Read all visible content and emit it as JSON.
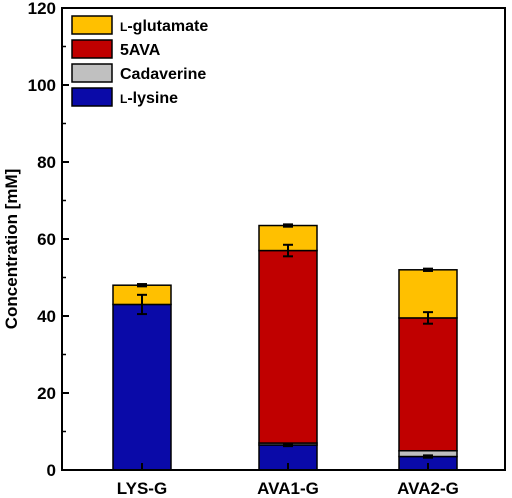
{
  "chart_data": {
    "type": "bar",
    "stacked": true,
    "categories": [
      "LYS-G",
      "AVA1-G",
      "AVA2-G"
    ],
    "ylabel": "Concentration [mM]",
    "xlabel": "",
    "ylim": [
      0,
      120
    ],
    "yticks": [
      0,
      20,
      40,
      60,
      80,
      100,
      120
    ],
    "grid": false,
    "legend_position": "top-left",
    "series": [
      {
        "name_sc": "l",
        "name_rest": "-lysine",
        "color": "#0a0aa8",
        "values": [
          43.0,
          6.5,
          3.5
        ],
        "errors": [
          2.5,
          0.3,
          0.3
        ]
      },
      {
        "name_rest": "Cadaverine",
        "color": "#c0c0c0",
        "values": [
          0.0,
          0.5,
          1.5
        ],
        "errors": [
          0,
          0,
          0
        ]
      },
      {
        "name_rest": "5AVA",
        "color": "#c00000",
        "values": [
          0.0,
          50.0,
          34.5
        ],
        "errors": [
          0,
          1.5,
          1.5
        ]
      },
      {
        "name_sc": "l",
        "name_rest": "-glutamate",
        "color": "#ffc000",
        "values": [
          5.0,
          6.5,
          12.5
        ],
        "errors": [
          0.3,
          0.3,
          0.3
        ]
      }
    ]
  }
}
